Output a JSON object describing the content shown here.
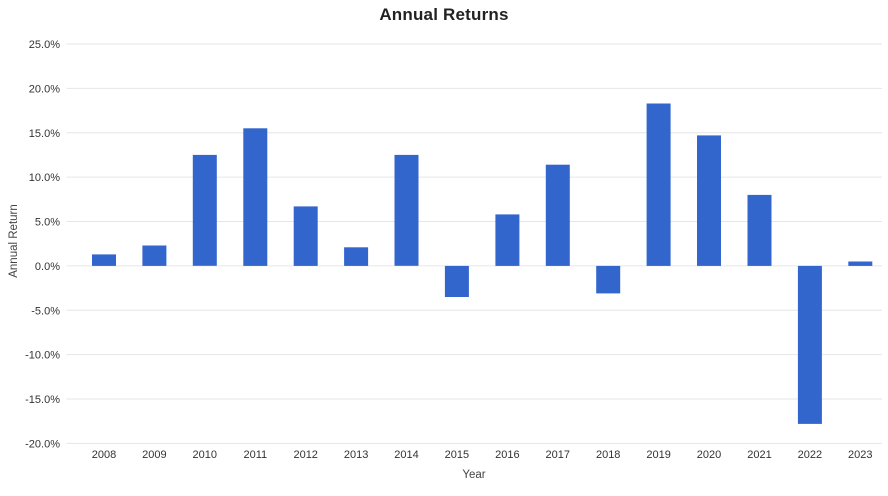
{
  "chart_data": {
    "type": "bar",
    "title": "Annual Returns",
    "xlabel": "Year",
    "ylabel": "Annual Return",
    "categories": [
      "2008",
      "2009",
      "2010",
      "2011",
      "2012",
      "2013",
      "2014",
      "2015",
      "2016",
      "2017",
      "2018",
      "2019",
      "2020",
      "2021",
      "2022",
      "2023"
    ],
    "values": [
      1.3,
      2.3,
      12.5,
      15.5,
      6.7,
      2.1,
      12.5,
      -3.5,
      5.8,
      11.4,
      -3.1,
      18.3,
      14.7,
      8.0,
      -17.8,
      0.5
    ],
    "unit": "%",
    "ylim": [
      -20,
      25
    ],
    "ytick_step": 5,
    "ytick_labels": [
      "25.0%",
      "20.0%",
      "15.0%",
      "10.0%",
      "5.0%",
      "0.0%",
      "-5.0%",
      "-10.0%",
      "-15.0%",
      "-20.0%"
    ],
    "grid": true,
    "legend": "none",
    "colors": {
      "bar": "#3366cc",
      "gridline": "#e6e6e6",
      "title": "#222222",
      "tick_label": "#333333",
      "axis_title": "#444444",
      "background": "#ffffff"
    }
  }
}
